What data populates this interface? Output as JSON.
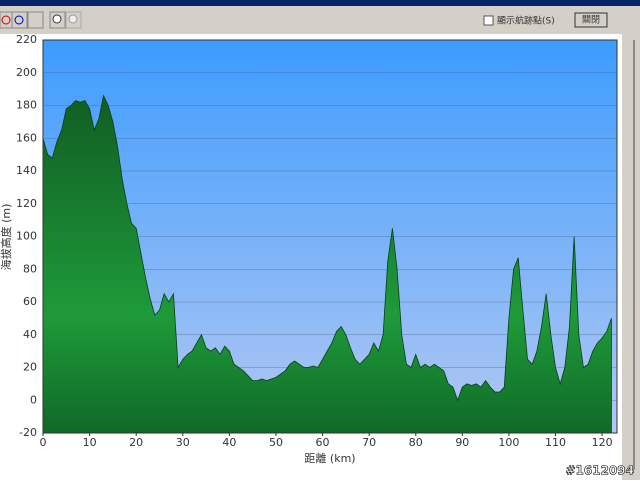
{
  "ui": {
    "checkbox_label": "顯示航跡點(S)",
    "close_button": "關閉",
    "watermark": "#1612094"
  },
  "chart_data": {
    "type": "area",
    "x_label": "距離 (km)",
    "y_label": "海拔高度 (m)",
    "x": [
      0,
      1,
      2,
      3,
      4,
      5,
      6,
      7,
      8,
      9,
      10,
      11,
      12,
      13,
      14,
      15,
      16,
      17,
      18,
      19,
      20,
      21,
      22,
      23,
      24,
      25,
      26,
      27,
      28,
      29,
      30,
      31,
      32,
      33,
      34,
      35,
      36,
      37,
      38,
      39,
      40,
      41,
      42,
      43,
      44,
      45,
      46,
      47,
      48,
      49,
      50,
      51,
      52,
      53,
      54,
      55,
      56,
      57,
      58,
      59,
      60,
      61,
      62,
      63,
      64,
      65,
      66,
      67,
      68,
      69,
      70,
      71,
      72,
      73,
      74,
      75,
      76,
      77,
      78,
      79,
      80,
      81,
      82,
      83,
      84,
      85,
      86,
      87,
      88,
      89,
      90,
      91,
      92,
      93,
      94,
      95,
      96,
      97,
      98,
      99,
      100,
      101,
      102,
      103,
      104,
      105,
      106,
      107,
      108,
      109,
      110,
      111,
      112,
      113,
      114,
      115,
      116,
      117,
      118,
      119,
      120,
      121,
      122
    ],
    "series": [
      {
        "color": "#1f9a3a",
        "values": [
          160,
          150,
          148,
          158,
          165,
          178,
          180,
          183,
          182,
          183,
          178,
          165,
          172,
          186,
          180,
          170,
          155,
          135,
          120,
          108,
          105,
          90,
          75,
          62,
          52,
          55,
          65,
          60,
          65,
          20,
          25,
          28,
          30,
          35,
          40,
          32,
          30,
          32,
          28,
          33,
          30,
          22,
          20,
          18,
          15,
          12,
          12,
          13,
          12,
          13,
          14,
          16,
          18,
          22,
          24,
          22,
          20,
          20,
          21,
          20,
          25,
          30,
          35,
          42,
          45,
          40,
          32,
          25,
          22,
          25,
          28,
          35,
          30,
          40,
          85,
          105,
          80,
          40,
          22,
          20,
          28,
          20,
          22,
          20,
          22,
          20,
          18,
          10,
          8,
          0,
          8,
          10,
          9,
          10,
          8,
          12,
          8,
          5,
          5,
          8,
          50,
          80,
          87,
          55,
          25,
          22,
          30,
          45,
          65,
          40,
          20,
          10,
          20,
          45,
          100,
          40,
          20,
          22,
          30,
          35,
          38,
          42,
          50
        ]
      }
    ],
    "xlim": [
      0,
      123.2
    ],
    "xticks": [
      0,
      10,
      20,
      30,
      40,
      50,
      60,
      70,
      80,
      90,
      100,
      110,
      120
    ],
    "ylim": [
      -20,
      220
    ],
    "yticks": [
      -20,
      0,
      20,
      40,
      60,
      80,
      100,
      120,
      140,
      160,
      180,
      200,
      220
    ],
    "grid": true
  }
}
